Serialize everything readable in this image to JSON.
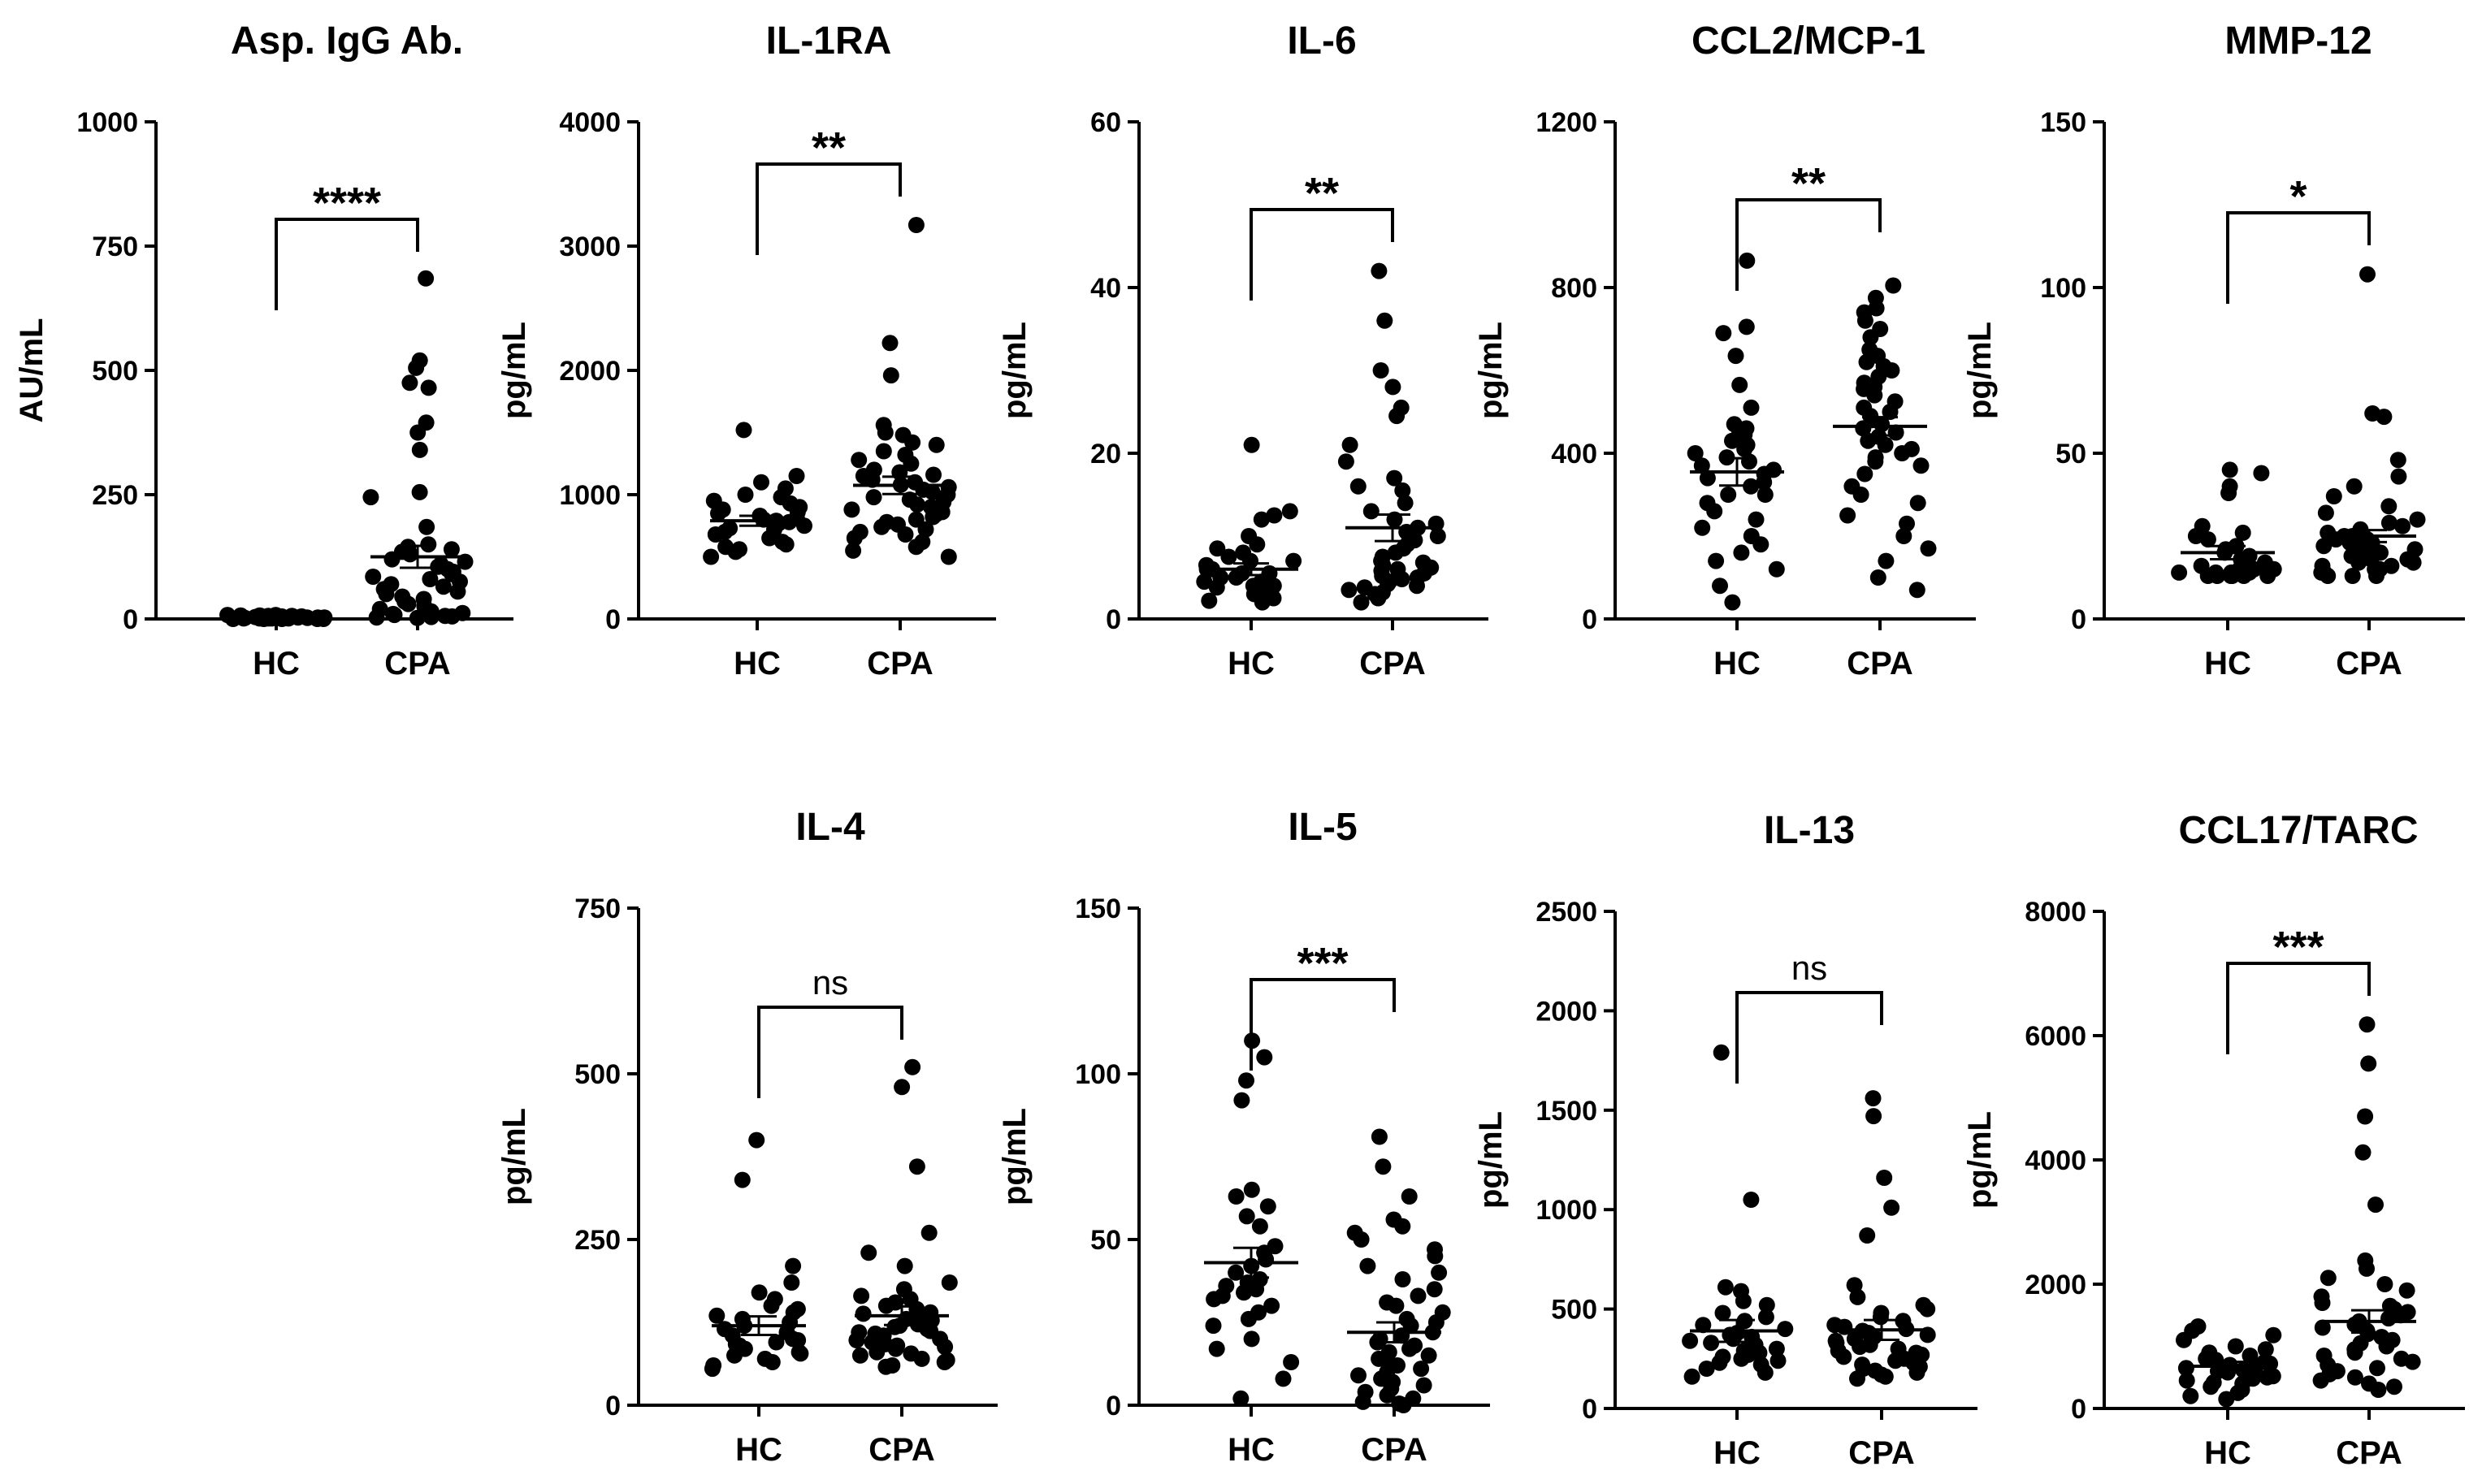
{
  "chart_data": [
    {
      "type": "scatter",
      "title": "Asp. IgG Ab.",
      "ylabel": "AU/mL",
      "ylim": [
        0,
        1000
      ],
      "yticks": [
        "0",
        "250",
        "500",
        "750",
        "1000"
      ],
      "categories": [
        "HC",
        "CPA"
      ],
      "significance": "****",
      "groups": [
        {
          "name": "HC",
          "mean": 2,
          "sem": 1,
          "values": [
            0,
            0,
            0,
            0,
            1,
            1,
            1,
            1,
            2,
            2,
            2,
            2,
            3,
            3,
            3,
            3,
            4,
            4,
            5,
            5,
            5,
            6,
            6,
            7,
            7,
            8,
            8,
            2,
            1,
            0,
            3,
            4
          ]
        },
        {
          "name": "CPA",
          "mean": 125,
          "sem": 22,
          "values": [
            685,
            520,
            505,
            475,
            465,
            395,
            375,
            340,
            255,
            245,
            185,
            150,
            145,
            140,
            135,
            130,
            120,
            115,
            105,
            95,
            90,
            85,
            80,
            75,
            70,
            65,
            60,
            55,
            50,
            45,
            40,
            35,
            30,
            25,
            20,
            15,
            12,
            10,
            8,
            6,
            5,
            4,
            3,
            2,
            100,
            110
          ]
        }
      ]
    },
    {
      "type": "scatter",
      "title": "IL-1RA",
      "ylabel": "pg/mL",
      "ylim": [
        0,
        4000
      ],
      "yticks": [
        "0",
        "1000",
        "2000",
        "3000",
        "4000"
      ],
      "categories": [
        "HC",
        "CPA"
      ],
      "significance": "**",
      "groups": [
        {
          "name": "HC",
          "mean": 790,
          "sem": 40,
          "values": [
            1520,
            1150,
            1100,
            1050,
            1000,
            980,
            950,
            930,
            900,
            880,
            860,
            850,
            830,
            810,
            800,
            790,
            780,
            770,
            750,
            730,
            720,
            700,
            680,
            650,
            620,
            600,
            580,
            560,
            540,
            500
          ]
        },
        {
          "name": "CPA",
          "mean": 1075,
          "sem": 70,
          "values": [
            3170,
            2220,
            1960,
            1560,
            1500,
            1480,
            1400,
            1320,
            1280,
            1250,
            1200,
            1180,
            1150,
            1120,
            1100,
            1080,
            1060,
            1040,
            1020,
            1000,
            980,
            960,
            940,
            920,
            900,
            880,
            860,
            840,
            820,
            800,
            780,
            760,
            740,
            720,
            700,
            680,
            650,
            620,
            580,
            550,
            500,
            1350,
            1420,
            1160
          ]
        }
      ]
    },
    {
      "type": "scatter",
      "title": "IL-6",
      "ylabel": "pg/mL",
      "ylim": [
        0,
        60
      ],
      "yticks": [
        "0",
        "20",
        "40",
        "60"
      ],
      "categories": [
        "HC",
        "CPA"
      ],
      "significance": "**",
      "groups": [
        {
          "name": "HC",
          "mean": 6,
          "sem": 0.7,
          "values": [
            21,
            13,
            12.5,
            12,
            10,
            9,
            8.5,
            8,
            7.5,
            7,
            7,
            6.5,
            6,
            6,
            5.5,
            5.5,
            5,
            5,
            4.5,
            4.5,
            4,
            4,
            3.8,
            3.5,
            3.2,
            3,
            2.8,
            2.5,
            2.2,
            2
          ]
        },
        {
          "name": "CPA",
          "mean": 11,
          "sem": 1.6,
          "values": [
            42,
            36,
            30,
            28,
            25.5,
            24.5,
            21,
            19,
            17,
            16,
            15.5,
            14,
            13,
            12,
            11.5,
            11,
            10.5,
            10,
            9.5,
            9,
            8.5,
            8,
            7.5,
            7,
            6.8,
            6.5,
            6.2,
            6,
            5.8,
            5.5,
            5.2,
            5,
            4.8,
            4.5,
            4.2,
            4,
            3.8,
            3.5,
            3.2,
            3,
            2.5,
            2
          ]
        }
      ]
    },
    {
      "type": "scatter",
      "title": "CCL2/MCP-1",
      "ylabel": "pg/mL",
      "ylim": [
        0,
        1200
      ],
      "yticks": [
        "0",
        "400",
        "800",
        "1200"
      ],
      "categories": [
        "HC",
        "CPA"
      ],
      "significance": "**",
      "groups": [
        {
          "name": "HC",
          "mean": 355,
          "sem": 33,
          "values": [
            865,
            705,
            690,
            635,
            565,
            510,
            470,
            455,
            445,
            430,
            410,
            400,
            390,
            380,
            370,
            360,
            350,
            340,
            330,
            320,
            300,
            280,
            260,
            240,
            220,
            200,
            180,
            160,
            140,
            120,
            80,
            40,
            420,
            460,
            300
          ]
        },
        {
          "name": "CPA",
          "mean": 465,
          "sem": 22,
          "values": [
            805,
            775,
            750,
            740,
            720,
            700,
            680,
            650,
            635,
            620,
            600,
            585,
            570,
            555,
            540,
            525,
            510,
            500,
            490,
            480,
            470,
            460,
            450,
            440,
            430,
            420,
            410,
            400,
            390,
            380,
            370,
            350,
            320,
            300,
            280,
            250,
            230,
            200,
            170,
            140,
            100,
            70,
            610,
            560
          ]
        }
      ]
    },
    {
      "type": "scatter",
      "title": "MMP-12",
      "ylabel": "pg/mL",
      "ylim": [
        0,
        150
      ],
      "yticks": [
        "0",
        "50",
        "100",
        "150"
      ],
      "categories": [
        "HC",
        "CPA"
      ],
      "significance": "*",
      "groups": [
        {
          "name": "HC",
          "mean": 20,
          "sem": 2,
          "values": [
            45,
            44,
            40,
            38,
            28,
            26,
            25,
            24,
            22,
            21,
            20,
            19,
            18,
            17,
            17,
            16,
            16,
            15,
            15,
            15,
            14,
            14,
            14,
            14,
            13,
            13,
            13,
            13,
            13,
            13
          ]
        },
        {
          "name": "CPA",
          "mean": 25,
          "sem": 1.8,
          "values": [
            104,
            62,
            61,
            48,
            43,
            40,
            37,
            34,
            32,
            30,
            29,
            28,
            27,
            26,
            26,
            25,
            25,
            24,
            24,
            23,
            23,
            22,
            22,
            21,
            21,
            20,
            20,
            19,
            19,
            18,
            18,
            17,
            17,
            16,
            16,
            15,
            15,
            14,
            14,
            13,
            13,
            13
          ]
        }
      ]
    },
    {
      "type": "scatter",
      "title": "IL-4",
      "ylabel": "pg/mL",
      "ylim": [
        0,
        750
      ],
      "yticks": [
        "0",
        "250",
        "500",
        "750"
      ],
      "categories": [
        "HC",
        "CPA"
      ],
      "significance": "ns",
      "groups": [
        {
          "name": "HC",
          "mean": 120,
          "sem": 14,
          "values": [
            400,
            340,
            210,
            185,
            170,
            160,
            150,
            145,
            140,
            135,
            130,
            125,
            120,
            115,
            110,
            105,
            100,
            98,
            95,
            92,
            90,
            88,
            85,
            80,
            78,
            75,
            70,
            65,
            60,
            55
          ]
        },
        {
          "name": "CPA",
          "mean": 135,
          "sem": 14,
          "values": [
            510,
            480,
            360,
            260,
            230,
            210,
            185,
            175,
            165,
            160,
            155,
            150,
            145,
            140,
            138,
            135,
            130,
            128,
            125,
            122,
            120,
            118,
            115,
            112,
            110,
            108,
            105,
            100,
            98,
            95,
            92,
            90,
            88,
            85,
            80,
            78,
            75,
            70,
            68,
            65,
            60,
            58
          ]
        }
      ]
    },
    {
      "type": "scatter",
      "title": "IL-5",
      "ylabel": "pg/mL",
      "ylim": [
        0,
        150
      ],
      "yticks": [
        "0",
        "50",
        "100",
        "150"
      ],
      "categories": [
        "HC",
        "CPA"
      ],
      "significance": "***",
      "groups": [
        {
          "name": "HC",
          "mean": 43,
          "sem": 4.5,
          "values": [
            110,
            105,
            98,
            92,
            65,
            63,
            60,
            57,
            54,
            48,
            46,
            44,
            42,
            40,
            38,
            37,
            36,
            35,
            34,
            33,
            32,
            30,
            28,
            26,
            24,
            20,
            17,
            13,
            8,
            2
          ]
        },
        {
          "name": "CPA",
          "mean": 22,
          "sem": 3,
          "values": [
            81,
            72,
            63,
            56,
            54,
            52,
            50,
            47,
            45,
            42,
            40,
            38,
            35,
            33,
            31,
            30,
            28,
            26,
            25,
            24,
            22,
            21,
            20,
            19,
            18,
            17,
            16,
            15,
            14,
            13,
            12,
            11,
            10,
            9,
            8,
            7,
            6,
            5,
            4,
            3,
            2,
            1,
            0.5,
            0
          ]
        }
      ]
    },
    {
      "type": "scatter",
      "title": "IL-13",
      "ylabel": "pg/mL",
      "ylim": [
        0,
        2500
      ],
      "yticks": [
        "0",
        "500",
        "1000",
        "1500",
        "2000",
        "2500"
      ],
      "categories": [
        "HC",
        "CPA"
      ],
      "significance": "ns",
      "groups": [
        {
          "name": "HC",
          "mean": 390,
          "sem": 55,
          "values": [
            1790,
            1050,
            610,
            590,
            540,
            520,
            480,
            460,
            440,
            420,
            400,
            380,
            370,
            360,
            350,
            340,
            330,
            320,
            300,
            290,
            280,
            270,
            260,
            250,
            240,
            230,
            220,
            200,
            180,
            160
          ]
        },
        {
          "name": "CPA",
          "mean": 395,
          "sem": 50,
          "values": [
            1560,
            1470,
            1160,
            1010,
            870,
            620,
            560,
            520,
            500,
            480,
            460,
            440,
            420,
            410,
            400,
            390,
            380,
            370,
            360,
            350,
            340,
            330,
            320,
            310,
            300,
            290,
            280,
            270,
            260,
            250,
            240,
            230,
            220,
            210,
            200,
            190,
            180,
            170,
            160,
            150
          ]
        }
      ]
    },
    {
      "type": "scatter",
      "title": "CCL17/TARC",
      "ylabel": "pg/mL",
      "ylim": [
        0,
        8000
      ],
      "yticks": [
        "0",
        "2000",
        "4000",
        "6000",
        "8000"
      ],
      "categories": [
        "HC",
        "CPA"
      ],
      "significance": "***",
      "groups": [
        {
          "name": "HC",
          "mean": 680,
          "sem": 70,
          "values": [
            1320,
            1250,
            1180,
            1100,
            1000,
            950,
            900,
            850,
            800,
            780,
            750,
            720,
            700,
            680,
            650,
            620,
            600,
            580,
            550,
            520,
            500,
            480,
            450,
            420,
            400,
            350,
            300,
            250,
            200,
            150
          ]
        },
        {
          "name": "CPA",
          "mean": 1400,
          "sem": 180,
          "values": [
            6180,
            5550,
            4700,
            4120,
            3280,
            2380,
            2250,
            2100,
            2000,
            1900,
            1800,
            1700,
            1650,
            1600,
            1550,
            1500,
            1450,
            1400,
            1350,
            1300,
            1250,
            1200,
            1150,
            1100,
            1050,
            1000,
            950,
            900,
            850,
            800,
            750,
            700,
            650,
            600,
            550,
            500,
            450,
            400,
            350,
            300
          ]
        }
      ]
    }
  ]
}
